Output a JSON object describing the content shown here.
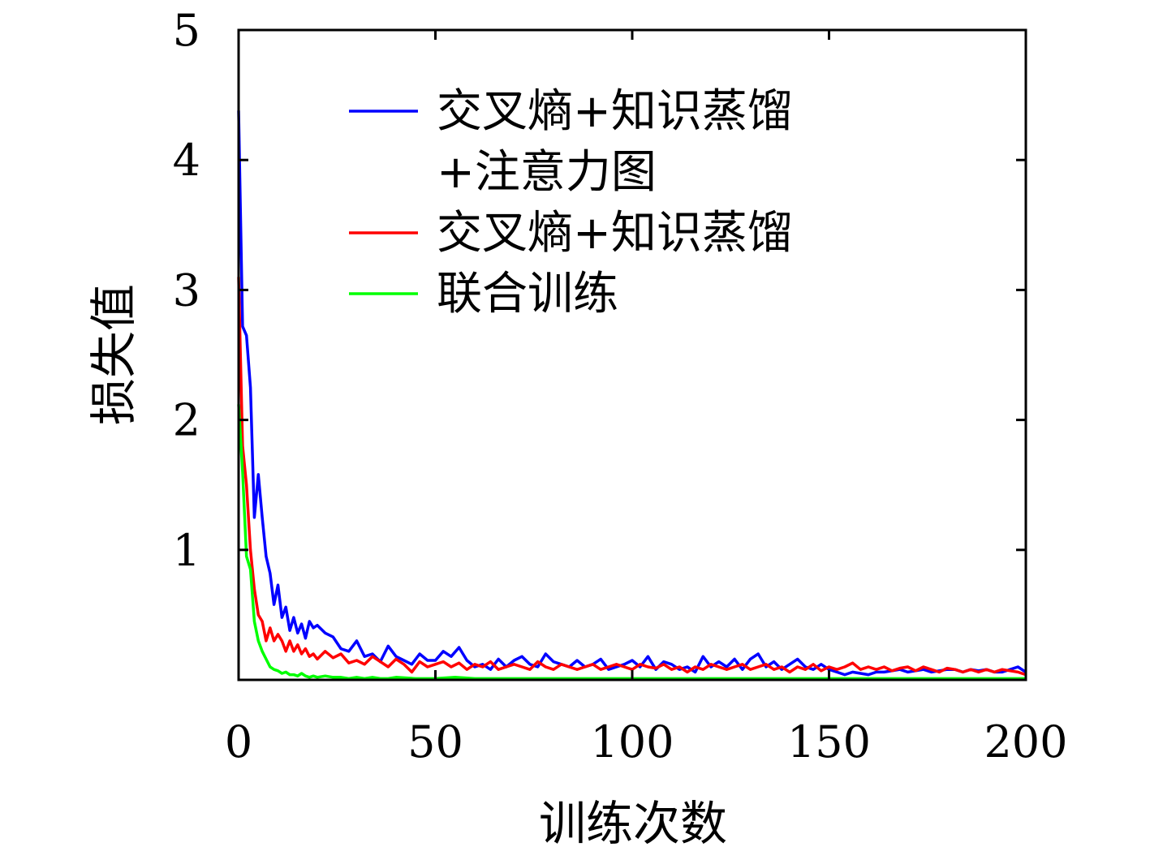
{
  "chart_data": {
    "type": "line",
    "xlabel": "训练次数",
    "ylabel": "损失值",
    "xlim": [
      0,
      200
    ],
    "ylim": [
      0,
      5
    ],
    "xticks": [
      0,
      50,
      100,
      150,
      200
    ],
    "yticks": [
      1,
      2,
      3,
      4,
      5
    ],
    "grid": false,
    "legend_position": "top-center",
    "series": [
      {
        "name": "交叉熵+知识蒸馏+注意力图",
        "legend_lines": [
          "交叉熵+知识蒸馏",
          "+注意力图"
        ],
        "color": "#0000ff",
        "x": [
          0,
          1,
          2,
          3,
          4,
          5,
          6,
          7,
          8,
          9,
          10,
          11,
          12,
          13,
          14,
          15,
          16,
          17,
          18,
          19,
          20,
          22,
          24,
          26,
          28,
          30,
          32,
          34,
          36,
          38,
          40,
          42,
          44,
          46,
          48,
          50,
          52,
          54,
          56,
          58,
          60,
          62,
          64,
          66,
          68,
          70,
          72,
          74,
          76,
          78,
          80,
          82,
          84,
          86,
          88,
          90,
          92,
          94,
          96,
          98,
          100,
          102,
          104,
          106,
          108,
          110,
          112,
          114,
          116,
          118,
          120,
          122,
          124,
          126,
          128,
          130,
          132,
          134,
          136,
          138,
          140,
          142,
          144,
          146,
          148,
          150,
          152,
          154,
          156,
          158,
          160,
          162,
          164,
          166,
          168,
          170,
          172,
          174,
          176,
          178,
          180,
          182,
          184,
          186,
          188,
          190,
          192,
          194,
          196,
          198,
          200
        ],
        "values": [
          4.38,
          2.72,
          2.65,
          2.25,
          1.25,
          1.58,
          1.25,
          0.95,
          0.82,
          0.58,
          0.73,
          0.48,
          0.56,
          0.38,
          0.48,
          0.36,
          0.43,
          0.32,
          0.45,
          0.4,
          0.42,
          0.36,
          0.33,
          0.24,
          0.22,
          0.3,
          0.18,
          0.2,
          0.14,
          0.26,
          0.18,
          0.15,
          0.12,
          0.2,
          0.15,
          0.15,
          0.22,
          0.18,
          0.25,
          0.15,
          0.1,
          0.12,
          0.08,
          0.16,
          0.1,
          0.15,
          0.18,
          0.12,
          0.1,
          0.2,
          0.14,
          0.12,
          0.1,
          0.15,
          0.1,
          0.12,
          0.16,
          0.08,
          0.1,
          0.12,
          0.15,
          0.1,
          0.18,
          0.08,
          0.14,
          0.12,
          0.08,
          0.1,
          0.06,
          0.18,
          0.1,
          0.14,
          0.1,
          0.16,
          0.08,
          0.16,
          0.2,
          0.1,
          0.14,
          0.08,
          0.12,
          0.16,
          0.1,
          0.08,
          0.12,
          0.08,
          0.06,
          0.04,
          0.06,
          0.05,
          0.04,
          0.06,
          0.06,
          0.07,
          0.08,
          0.06,
          0.07,
          0.08,
          0.06,
          0.07,
          0.08,
          0.08,
          0.06,
          0.08,
          0.07,
          0.08,
          0.06,
          0.06,
          0.08,
          0.1,
          0.06
        ]
      },
      {
        "name": "交叉熵+知识蒸馏",
        "legend_lines": [
          "交叉熵+知识蒸馏"
        ],
        "color": "#ff0000",
        "x": [
          0,
          1,
          2,
          3,
          4,
          5,
          6,
          7,
          8,
          9,
          10,
          11,
          12,
          13,
          14,
          15,
          16,
          17,
          18,
          19,
          20,
          22,
          24,
          26,
          28,
          30,
          32,
          34,
          36,
          38,
          40,
          42,
          44,
          46,
          48,
          50,
          52,
          54,
          56,
          58,
          60,
          62,
          64,
          66,
          68,
          70,
          72,
          74,
          76,
          78,
          80,
          82,
          84,
          86,
          88,
          90,
          92,
          94,
          96,
          98,
          100,
          102,
          104,
          106,
          108,
          110,
          112,
          114,
          116,
          118,
          120,
          122,
          124,
          126,
          128,
          130,
          132,
          134,
          136,
          138,
          140,
          142,
          144,
          146,
          148,
          150,
          152,
          154,
          156,
          158,
          160,
          162,
          164,
          166,
          168,
          170,
          172,
          174,
          176,
          178,
          180,
          182,
          184,
          186,
          188,
          190,
          192,
          194,
          196,
          198,
          200
        ],
        "values": [
          3.1,
          1.8,
          1.5,
          1.0,
          0.7,
          0.5,
          0.45,
          0.3,
          0.4,
          0.3,
          0.35,
          0.3,
          0.22,
          0.3,
          0.22,
          0.27,
          0.2,
          0.24,
          0.18,
          0.2,
          0.16,
          0.22,
          0.17,
          0.2,
          0.13,
          0.15,
          0.12,
          0.18,
          0.14,
          0.1,
          0.16,
          0.12,
          0.06,
          0.14,
          0.1,
          0.12,
          0.14,
          0.1,
          0.13,
          0.08,
          0.12,
          0.1,
          0.14,
          0.08,
          0.1,
          0.12,
          0.1,
          0.08,
          0.14,
          0.1,
          0.08,
          0.12,
          0.1,
          0.08,
          0.1,
          0.12,
          0.08,
          0.1,
          0.12,
          0.1,
          0.08,
          0.12,
          0.1,
          0.09,
          0.12,
          0.08,
          0.1,
          0.06,
          0.1,
          0.08,
          0.12,
          0.1,
          0.08,
          0.1,
          0.12,
          0.08,
          0.1,
          0.12,
          0.08,
          0.1,
          0.06,
          0.1,
          0.08,
          0.12,
          0.07,
          0.1,
          0.08,
          0.1,
          0.13,
          0.08,
          0.1,
          0.08,
          0.1,
          0.07,
          0.09,
          0.1,
          0.07,
          0.1,
          0.08,
          0.06,
          0.09,
          0.08,
          0.06,
          0.08,
          0.06,
          0.08,
          0.06,
          0.08,
          0.07,
          0.06,
          0.04
        ]
      },
      {
        "name": "联合训练",
        "legend_lines": [
          "联合训练"
        ],
        "color": "#00ff00",
        "x": [
          0,
          1,
          2,
          3,
          4,
          5,
          6,
          7,
          8,
          9,
          10,
          11,
          12,
          13,
          14,
          15,
          16,
          17,
          18,
          19,
          20,
          22,
          24,
          26,
          28,
          30,
          32,
          34,
          36,
          38,
          40,
          45,
          50,
          55,
          60,
          65,
          70,
          75,
          80,
          85,
          90,
          95,
          100,
          105,
          110,
          115,
          120,
          125,
          130,
          135,
          140,
          145,
          150,
          155,
          160,
          165,
          170,
          175,
          180,
          185,
          190,
          195,
          200
        ],
        "values": [
          2.12,
          1.6,
          0.95,
          0.85,
          0.45,
          0.3,
          0.22,
          0.16,
          0.1,
          0.08,
          0.07,
          0.05,
          0.06,
          0.04,
          0.04,
          0.03,
          0.05,
          0.03,
          0.02,
          0.03,
          0.02,
          0.03,
          0.02,
          0.02,
          0.01,
          0.02,
          0.01,
          0.02,
          0.01,
          0.01,
          0.02,
          0.01,
          0.01,
          0.02,
          0.01,
          0.01,
          0.01,
          0.01,
          0.01,
          0.01,
          0.01,
          0.01,
          0.01,
          0.01,
          0.01,
          0.01,
          0.01,
          0.01,
          0.01,
          0.01,
          0.01,
          0.01,
          0.01,
          0.01,
          0.01,
          0.01,
          0.01,
          0.01,
          0.01,
          0.01,
          0.01,
          0.01,
          0.01
        ]
      }
    ]
  }
}
